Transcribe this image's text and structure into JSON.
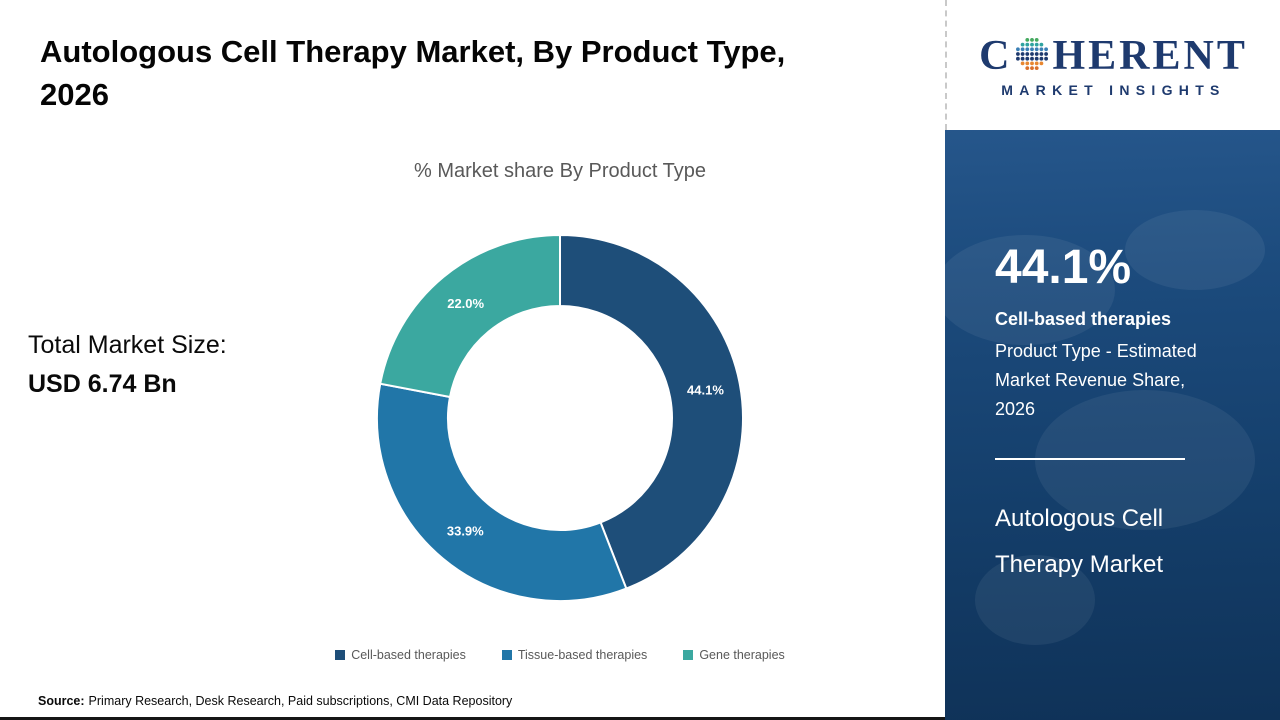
{
  "header": {
    "title": "Autologous Cell Therapy Market, By Product Type, 2026"
  },
  "market": {
    "size_label": "Total Market Size:",
    "size_value": "USD 6.74 Bn"
  },
  "chart_data": {
    "type": "pie",
    "donut": true,
    "title": "% Market share By Product Type",
    "series": [
      {
        "name": "Cell-based therapies",
        "value": 44.1,
        "label": "44.1%",
        "color": "#1E4E79"
      },
      {
        "name": "Tissue-based therapies",
        "value": 33.9,
        "label": "33.9%",
        "color": "#2176A8"
      },
      {
        "name": "Gene therapies",
        "value": 22.0,
        "label": "22.0%",
        "color": "#3BA8A0"
      }
    ],
    "start_angle_deg": 0,
    "direction": "clockwise",
    "legend_position": "bottom",
    "label_color": "#ffffff"
  },
  "source": {
    "label": "Source:",
    "text": "Primary Research, Desk Research, Paid subscriptions, CMI Data Repository"
  },
  "sidebar": {
    "logo": {
      "word_start": "C",
      "word_end": "HERENT",
      "tagline": "MARKET INSIGHTS"
    },
    "stat_value": "44.1%",
    "stat_name": "Cell-based therapies",
    "stat_desc": "Product Type - Estimated Market Revenue Share, 2026",
    "panel_title": "Autologous Cell Therapy Market"
  }
}
